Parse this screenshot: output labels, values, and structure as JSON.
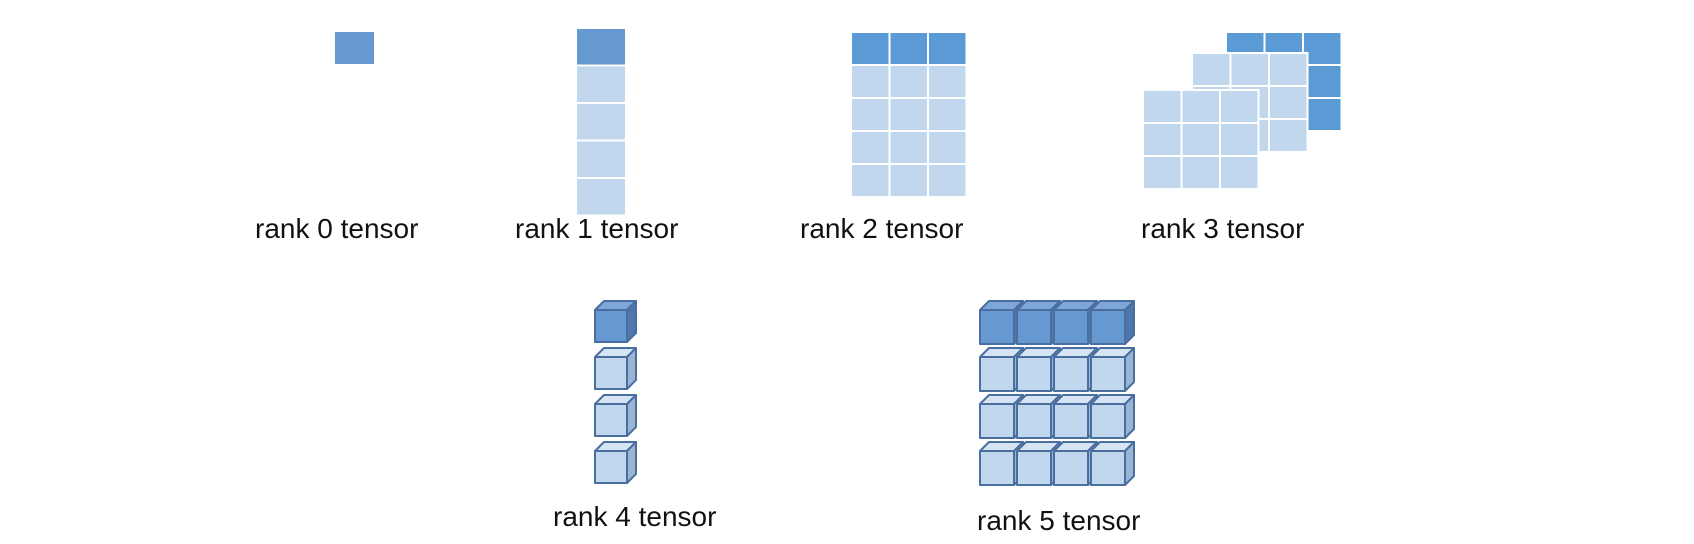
{
  "colors": {
    "dark": "#6699D1",
    "dark_alt": "#5B9BD5",
    "light": "#C0D7EE",
    "cube_stroke": "#4A6E9E",
    "cube_top_dark": "#7FA6D8",
    "cube_side_dark": "#4E77AE",
    "cube_top_light": "#D6E5F4",
    "cube_side_light": "#9AB4D4"
  },
  "diagrams": [
    {
      "id": "rank0",
      "label": "rank 0 tensor"
    },
    {
      "id": "rank1",
      "label": "rank 1 tensor"
    },
    {
      "id": "rank2",
      "label": "rank 2 tensor"
    },
    {
      "id": "rank3",
      "label": "rank 3 tensor"
    },
    {
      "id": "rank4",
      "label": "rank 4 tensor"
    },
    {
      "id": "rank5",
      "label": "rank 5 tensor"
    }
  ]
}
